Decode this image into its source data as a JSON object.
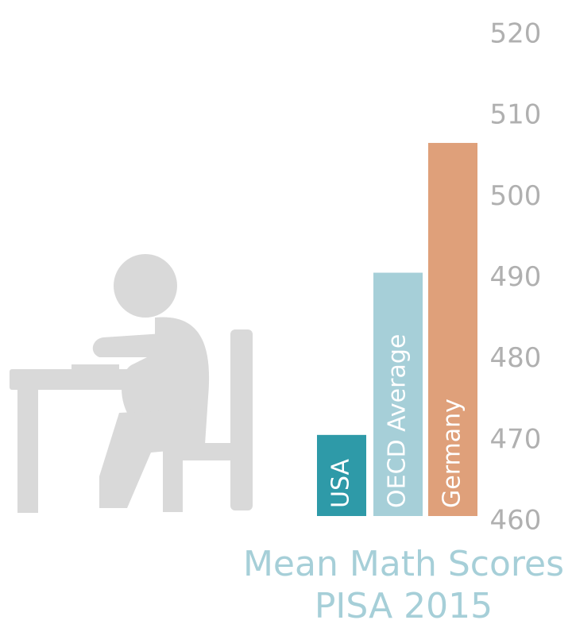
{
  "chart_data": {
    "type": "bar",
    "title": "Mean Math Scores",
    "subtitle": "PISA 2015",
    "categories": [
      "USA",
      "OECD Average",
      "Germany"
    ],
    "values": [
      470,
      490,
      506
    ],
    "colors": [
      "#2e9aa8",
      "#a6cfd8",
      "#dfa07a"
    ],
    "ylim": [
      460,
      520
    ],
    "yticks": [
      460,
      470,
      480,
      490,
      500,
      510,
      520
    ],
    "grid": false
  }
}
